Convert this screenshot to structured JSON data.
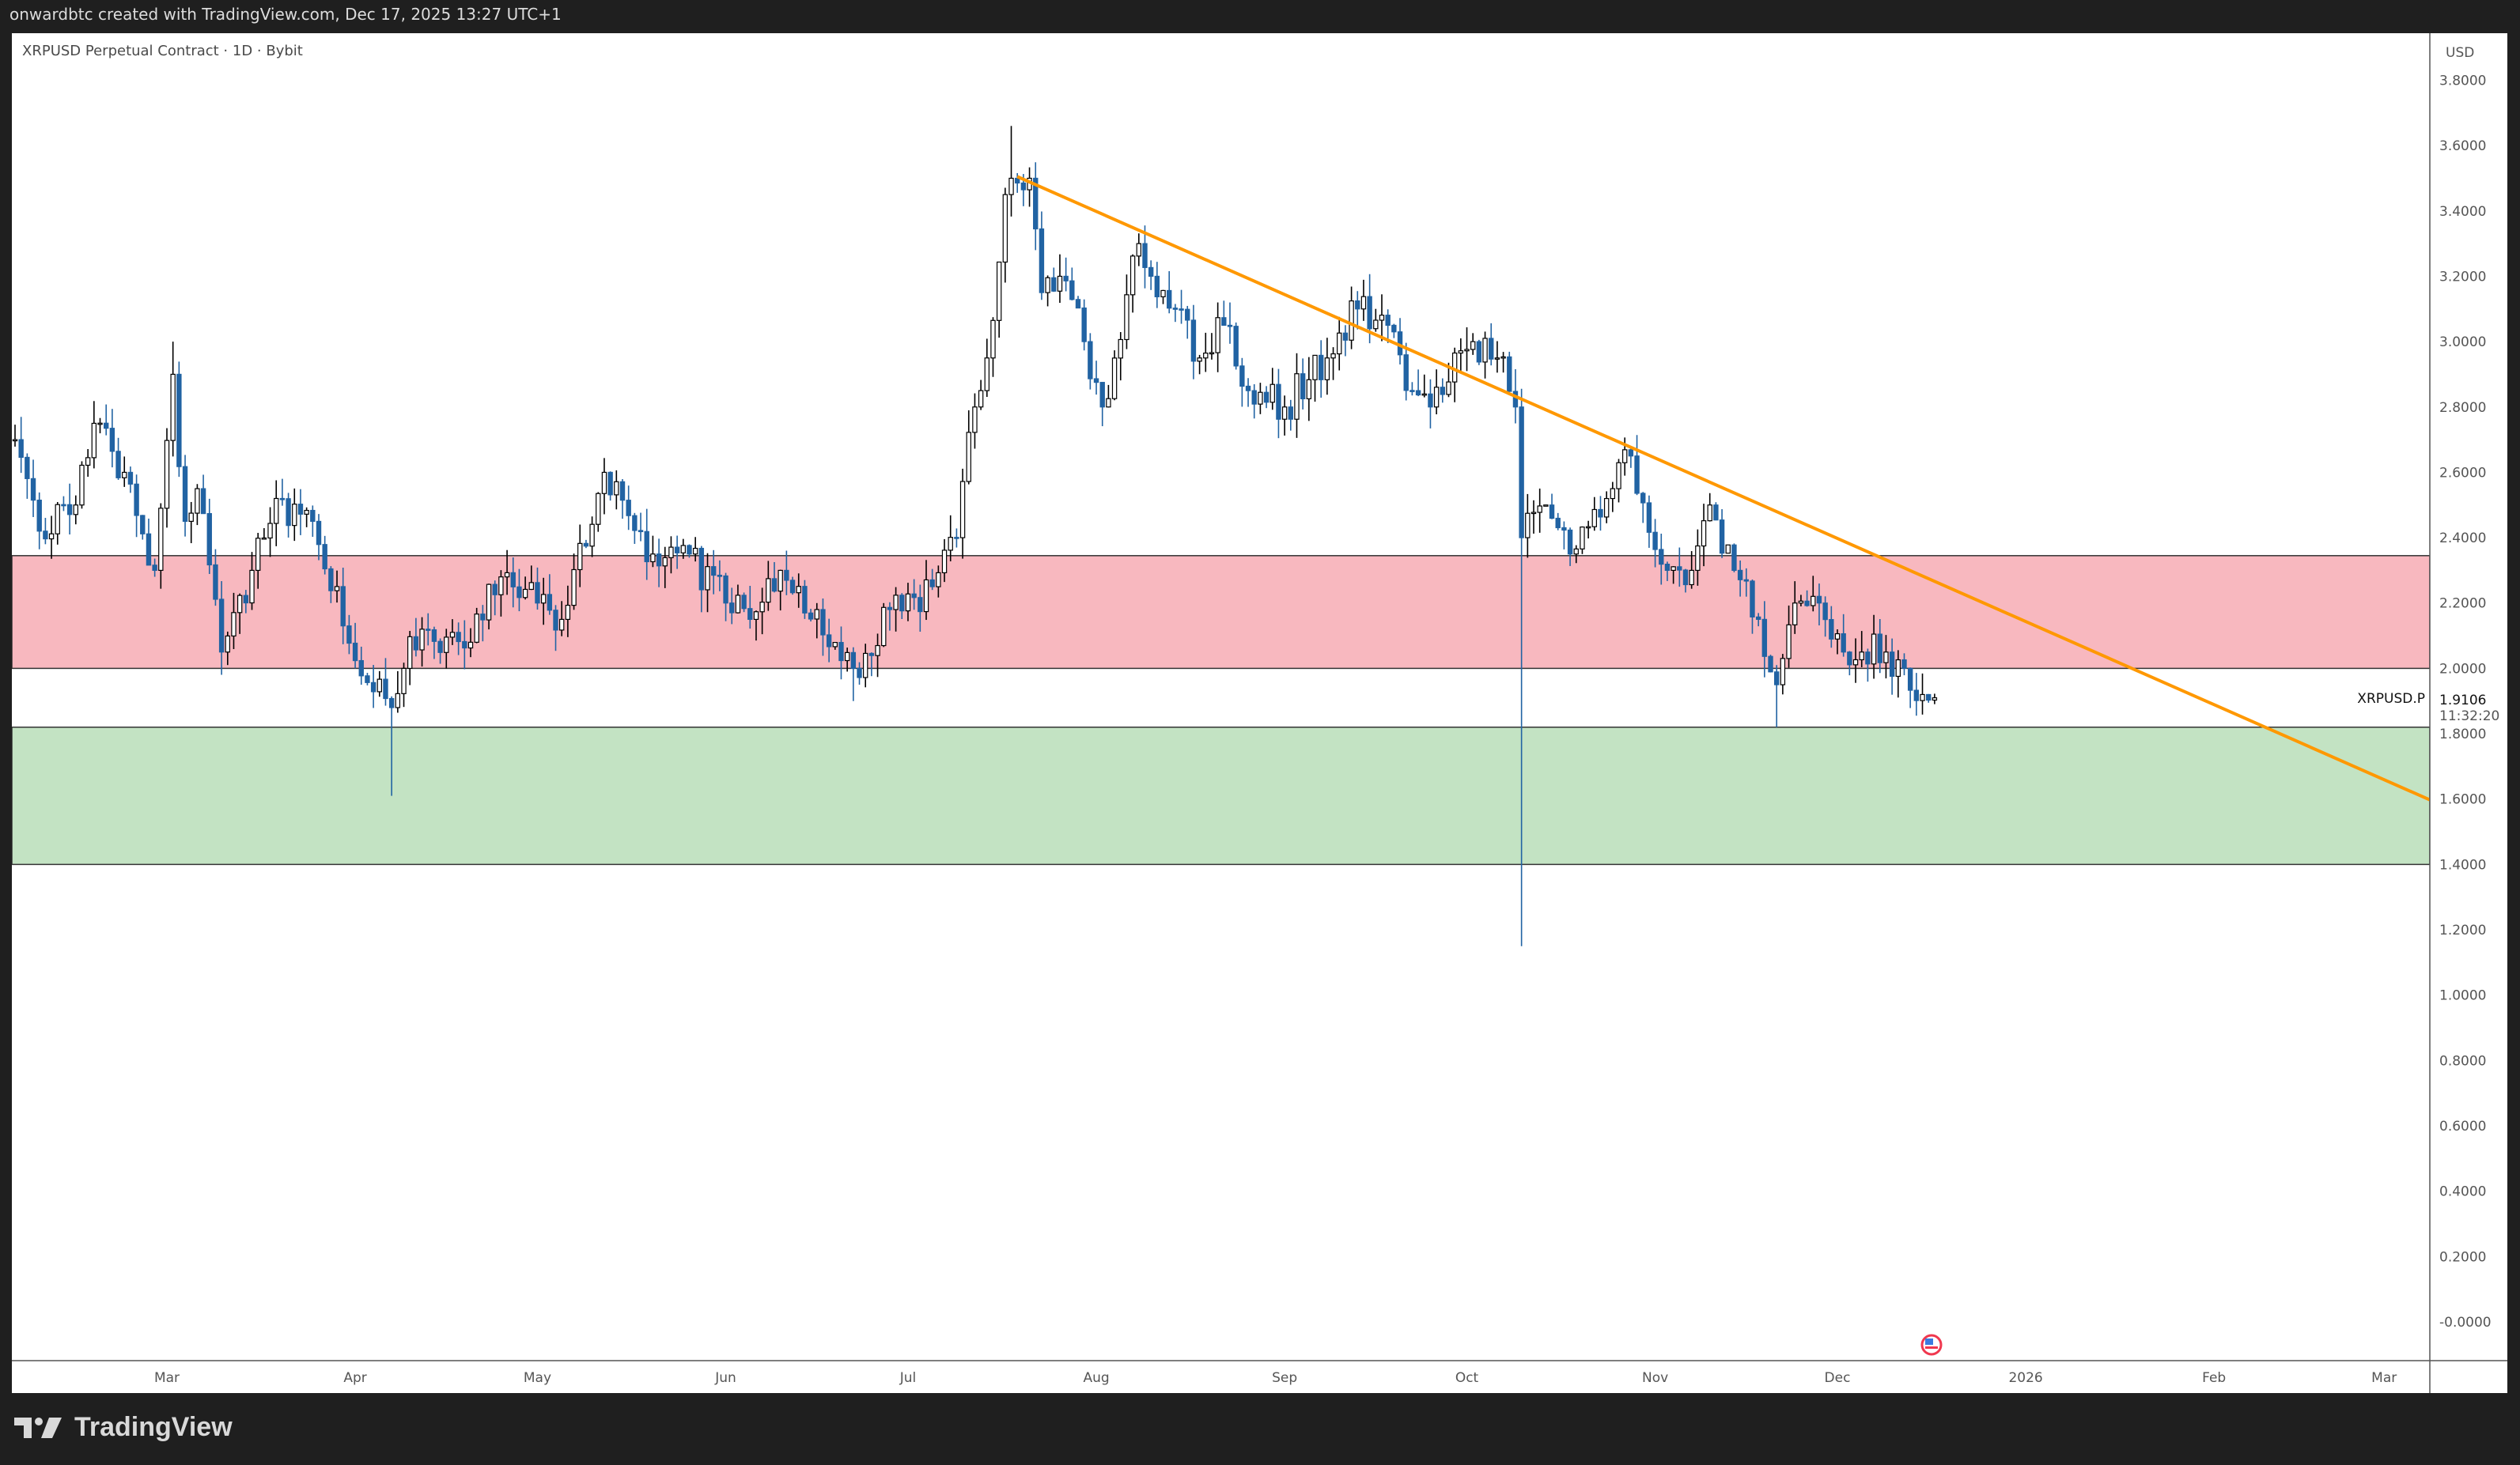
{
  "header": {
    "credit": "onwardbtc created with TradingView.com, Dec 17, 2025 13:27 UTC+1"
  },
  "footer": {
    "brand": "TradingView"
  },
  "chart_data": {
    "type": "candlestick",
    "title": "XRPUSD Perpetual Contract · 1D · Bybit",
    "currency": "USD",
    "symbol_label": "XRPUSD.P",
    "last_price": "1.9106",
    "countdown": "11:32:20",
    "ylim": [
      0,
      3.8
    ],
    "y_ticks": [
      "3.8000",
      "3.6000",
      "3.4000",
      "3.2000",
      "3.0000",
      "2.8000",
      "2.6000",
      "2.4000",
      "2.2000",
      "2.0000",
      "1.8000",
      "1.6000",
      "1.4000",
      "1.2000",
      "1.0000",
      "0.8000",
      "0.6000",
      "0.4000",
      "0.2000",
      "-0.0000"
    ],
    "x_ticks": [
      {
        "label": "Mar",
        "date": "2025-03-01"
      },
      {
        "label": "Apr",
        "date": "2025-04-01"
      },
      {
        "label": "May",
        "date": "2025-05-01"
      },
      {
        "label": "Jun",
        "date": "2025-06-01"
      },
      {
        "label": "Jul",
        "date": "2025-07-01"
      },
      {
        "label": "Aug",
        "date": "2025-08-01"
      },
      {
        "label": "Sep",
        "date": "2025-09-01"
      },
      {
        "label": "Oct",
        "date": "2025-10-01"
      },
      {
        "label": "Nov",
        "date": "2025-11-01"
      },
      {
        "label": "Dec",
        "date": "2025-12-01"
      },
      {
        "label": "2026",
        "date": "2026-01-01"
      },
      {
        "label": "Feb",
        "date": "2026-02-01"
      },
      {
        "label": "Mar",
        "date": "2026-03-01"
      }
    ],
    "close_anchors": [
      [
        "2025-02-04",
        2.7
      ],
      [
        "2025-02-08",
        2.42
      ],
      [
        "2025-02-14",
        2.5
      ],
      [
        "2025-02-17",
        2.75
      ],
      [
        "2025-02-22",
        2.6
      ],
      [
        "2025-02-27",
        2.3
      ],
      [
        "2025-03-02",
        2.9
      ],
      [
        "2025-03-04",
        2.45
      ],
      [
        "2025-03-06",
        2.55
      ],
      [
        "2025-03-10",
        2.05
      ],
      [
        "2025-03-15",
        2.3
      ],
      [
        "2025-03-19",
        2.52
      ],
      [
        "2025-03-25",
        2.45
      ],
      [
        "2025-03-30",
        2.13
      ],
      [
        "2025-04-07",
        1.88
      ],
      [
        "2025-04-09",
        2.0
      ],
      [
        "2025-04-12",
        2.12
      ],
      [
        "2025-04-20",
        2.08
      ],
      [
        "2025-04-25",
        2.28
      ],
      [
        "2025-05-01",
        2.2
      ],
      [
        "2025-05-05",
        2.15
      ],
      [
        "2025-05-12",
        2.6
      ],
      [
        "2025-05-20",
        2.35
      ],
      [
        "2025-05-26",
        2.35
      ],
      [
        "2025-06-01",
        2.2
      ],
      [
        "2025-06-05",
        2.15
      ],
      [
        "2025-06-10",
        2.3
      ],
      [
        "2025-06-16",
        2.18
      ],
      [
        "2025-06-22",
        2.0
      ],
      [
        "2025-06-28",
        2.18
      ],
      [
        "2025-07-05",
        2.25
      ],
      [
        "2025-07-09",
        2.4
      ],
      [
        "2025-07-12",
        2.8
      ],
      [
        "2025-07-14",
        2.95
      ],
      [
        "2025-07-17",
        3.45
      ],
      [
        "2025-07-18",
        3.5
      ],
      [
        "2025-07-21",
        3.5
      ],
      [
        "2025-07-23",
        3.15
      ],
      [
        "2025-07-26",
        3.2
      ],
      [
        "2025-07-30",
        3.0
      ],
      [
        "2025-08-02",
        2.8
      ],
      [
        "2025-08-08",
        3.3
      ],
      [
        "2025-08-10",
        3.2
      ],
      [
        "2025-08-14",
        3.1
      ],
      [
        "2025-08-18",
        2.95
      ],
      [
        "2025-08-22",
        3.05
      ],
      [
        "2025-08-26",
        2.85
      ],
      [
        "2025-09-01",
        2.8
      ],
      [
        "2025-09-08",
        2.95
      ],
      [
        "2025-09-13",
        3.1
      ],
      [
        "2025-09-18",
        3.05
      ],
      [
        "2025-09-22",
        2.85
      ],
      [
        "2025-09-25",
        2.8
      ],
      [
        "2025-10-02",
        3.0
      ],
      [
        "2025-10-06",
        2.95
      ],
      [
        "2025-10-09",
        2.8
      ],
      [
        "2025-10-10",
        2.4
      ],
      [
        "2025-10-14",
        2.5
      ],
      [
        "2025-10-18",
        2.35
      ],
      [
        "2025-10-25",
        2.55
      ],
      [
        "2025-10-28",
        2.65
      ],
      [
        "2025-11-03",
        2.3
      ],
      [
        "2025-11-07",
        2.3
      ],
      [
        "2025-11-10",
        2.5
      ],
      [
        "2025-11-14",
        2.3
      ],
      [
        "2025-11-18",
        2.15
      ],
      [
        "2025-11-21",
        1.95
      ],
      [
        "2025-11-24",
        2.2
      ],
      [
        "2025-11-28",
        2.2
      ],
      [
        "2025-12-02",
        2.05
      ],
      [
        "2025-12-05",
        2.05
      ],
      [
        "2025-12-09",
        2.05
      ],
      [
        "2025-12-12",
        2.0
      ],
      [
        "2025-12-15",
        1.92
      ],
      [
        "2025-12-17",
        1.91
      ]
    ],
    "extreme_wicks": [
      {
        "date": "2025-03-02",
        "high": 3.0
      },
      {
        "date": "2025-04-07",
        "low": 1.61
      },
      {
        "date": "2025-07-18",
        "high": 3.66
      },
      {
        "date": "2025-10-10",
        "low": 1.15
      },
      {
        "date": "2025-11-21",
        "low": 1.82
      },
      {
        "date": "2025-06-22",
        "low": 1.9
      }
    ],
    "zones": [
      {
        "name": "resistance",
        "from": 2.0,
        "to": 2.345,
        "color": "#f8b8bf"
      },
      {
        "name": "support",
        "from": 1.4,
        "to": 1.82,
        "color": "#c3e3c3"
      }
    ],
    "trendline": {
      "start": [
        "2025-07-19",
        3.505
      ],
      "end": [
        "2026-03-18",
        1.52
      ],
      "color": "#ff9800"
    },
    "colors": {
      "up": "#ffffff",
      "up_border": "#000000",
      "down": "#2163a3"
    }
  }
}
